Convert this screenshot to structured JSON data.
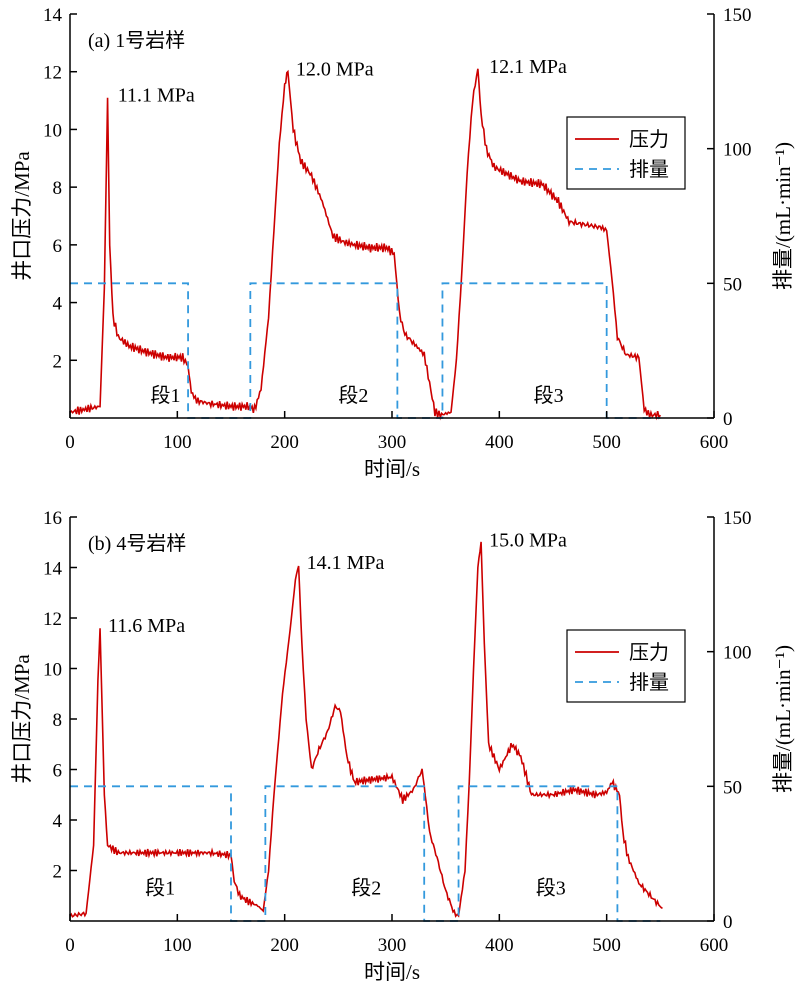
{
  "chart_data": [
    {
      "id": "a",
      "type": "line",
      "title": "(a) 1号岩样",
      "xlabel": "时间/s",
      "ylabel": "井口压力/MPa",
      "ylabel2": "排量/(mL·min⁻¹)",
      "xlim": [
        0,
        600
      ],
      "ylim": [
        0,
        14
      ],
      "ylim2": [
        0,
        150
      ],
      "xticks": [
        0,
        100,
        200,
        300,
        400,
        500,
        600
      ],
      "yticks": [
        2,
        4,
        6,
        8,
        10,
        12,
        14
      ],
      "yticks2": [
        0,
        50,
        100,
        150
      ],
      "legend": {
        "position": "right",
        "items": [
          {
            "label": "压力",
            "color": "#cc0000",
            "style": "solid"
          },
          {
            "label": "排量",
            "color": "#3399dd",
            "style": "dashed"
          }
        ]
      },
      "series": [
        {
          "name": "压力",
          "axis": "left",
          "color": "#cc0000",
          "x": [
            0,
            28,
            32,
            35,
            37,
            40,
            45,
            55,
            70,
            90,
            105,
            110,
            113,
            118,
            130,
            150,
            165,
            172,
            178,
            185,
            190,
            195,
            200,
            203,
            208,
            215,
            225,
            235,
            245,
            255,
            265,
            280,
            295,
            302,
            307,
            312,
            320,
            330,
            340,
            345,
            355,
            360,
            365,
            370,
            375,
            380,
            383,
            388,
            395,
            405,
            420,
            440,
            455,
            465,
            480,
            495,
            500,
            505,
            510,
            518,
            530,
            535,
            540,
            550
          ],
          "y": [
            0.2,
            0.4,
            4.5,
            11.1,
            6.0,
            3.5,
            2.8,
            2.5,
            2.3,
            2.1,
            2.1,
            1.8,
            0.9,
            0.6,
            0.5,
            0.4,
            0.4,
            0.3,
            1.0,
            3.5,
            6.5,
            9.5,
            11.5,
            12.0,
            10.0,
            8.9,
            8.4,
            7.5,
            6.3,
            6.1,
            6.0,
            5.9,
            5.9,
            5.7,
            3.6,
            2.9,
            2.6,
            2.2,
            0.2,
            0.1,
            0.2,
            2.0,
            5.0,
            8.5,
            11.0,
            12.1,
            10.5,
            9.3,
            8.7,
            8.5,
            8.2,
            8.1,
            7.5,
            6.8,
            6.7,
            6.6,
            6.5,
            4.8,
            2.8,
            2.2,
            2.1,
            0.3,
            0.1,
            0.1
          ]
        },
        {
          "name": "排量",
          "axis": "right",
          "color": "#3399dd",
          "x": [
            0,
            110,
            110,
            168,
            168,
            305,
            305,
            347,
            347,
            500,
            500,
            550
          ],
          "y": [
            50,
            50,
            0,
            0,
            50,
            50,
            0,
            0,
            50,
            50,
            0,
            0
          ]
        }
      ],
      "annotations": [
        {
          "text": "11.1 MPa",
          "x": 37,
          "y": 11.1
        },
        {
          "text": "12.0 MPa",
          "x": 203,
          "y": 12.0
        },
        {
          "text": "12.1 MPa",
          "x": 383,
          "y": 12.1
        },
        {
          "text": "段1",
          "x": 75,
          "y": 0.55
        },
        {
          "text": "段2",
          "x": 250,
          "y": 0.55
        },
        {
          "text": "段3",
          "x": 432,
          "y": 0.55
        }
      ]
    },
    {
      "id": "b",
      "type": "line",
      "title": "(b) 4号岩样",
      "xlabel": "时间/s",
      "ylabel": "井口压力/MPa",
      "ylabel2": "排量/(mL·min⁻¹)",
      "xlim": [
        0,
        600
      ],
      "ylim": [
        0,
        16
      ],
      "ylim2": [
        0,
        150
      ],
      "xticks": [
        0,
        100,
        200,
        300,
        400,
        500,
        600
      ],
      "yticks": [
        2,
        4,
        6,
        8,
        10,
        12,
        14,
        16
      ],
      "yticks2": [
        0,
        50,
        100,
        150
      ],
      "legend": {
        "position": "right",
        "items": [
          {
            "label": "压力",
            "color": "#cc0000",
            "style": "solid"
          },
          {
            "label": "排量",
            "color": "#3399dd",
            "style": "dashed"
          }
        ]
      },
      "series": [
        {
          "name": "压力",
          "axis": "left",
          "color": "#cc0000",
          "x": [
            0,
            15,
            22,
            26,
            28,
            32,
            35,
            45,
            70,
            100,
            130,
            150,
            153,
            158,
            165,
            175,
            180,
            185,
            190,
            198,
            205,
            210,
            213,
            216,
            220,
            225,
            232,
            240,
            247,
            252,
            258,
            265,
            280,
            300,
            310,
            320,
            328,
            331,
            335,
            342,
            350,
            358,
            362,
            368,
            372,
            376,
            380,
            383,
            386,
            390,
            400,
            412,
            420,
            430,
            450,
            470,
            490,
            500,
            505,
            512,
            515,
            520,
            530,
            545,
            552
          ],
          "y": [
            0.2,
            0.3,
            3.0,
            9.5,
            11.6,
            5.0,
            3.0,
            2.7,
            2.7,
            2.7,
            2.7,
            2.6,
            1.6,
            1.0,
            0.8,
            0.6,
            0.4,
            2.0,
            5.0,
            9.0,
            11.5,
            13.5,
            14.1,
            11.0,
            8.0,
            6.0,
            6.8,
            7.5,
            8.5,
            8.3,
            6.5,
            5.5,
            5.6,
            5.7,
            4.8,
            5.2,
            6.0,
            5.0,
            3.5,
            2.5,
            1.2,
            0.3,
            0.2,
            2.0,
            5.5,
            10.0,
            14.0,
            15.0,
            11.0,
            7.0,
            6.0,
            7.0,
            6.5,
            5.0,
            5.0,
            5.2,
            5.0,
            5.1,
            5.5,
            5.0,
            3.5,
            2.5,
            1.5,
            0.8,
            0.5
          ]
        },
        {
          "name": "排量",
          "axis": "right",
          "color": "#3399dd",
          "x": [
            0,
            150,
            150,
            182,
            182,
            330,
            330,
            362,
            362,
            510,
            510,
            550
          ],
          "y": [
            50,
            50,
            0,
            0,
            50,
            50,
            0,
            0,
            50,
            50,
            0,
            0
          ]
        }
      ],
      "annotations": [
        {
          "text": "11.6 MPa",
          "x": 28,
          "y": 11.6
        },
        {
          "text": "14.1 MPa",
          "x": 213,
          "y": 14.1
        },
        {
          "text": "15.0 MPa",
          "x": 383,
          "y": 15.0
        },
        {
          "text": "段1",
          "x": 70,
          "y": 1.05
        },
        {
          "text": "段2",
          "x": 262,
          "y": 1.05
        },
        {
          "text": "段3",
          "x": 434,
          "y": 1.05
        }
      ]
    }
  ]
}
